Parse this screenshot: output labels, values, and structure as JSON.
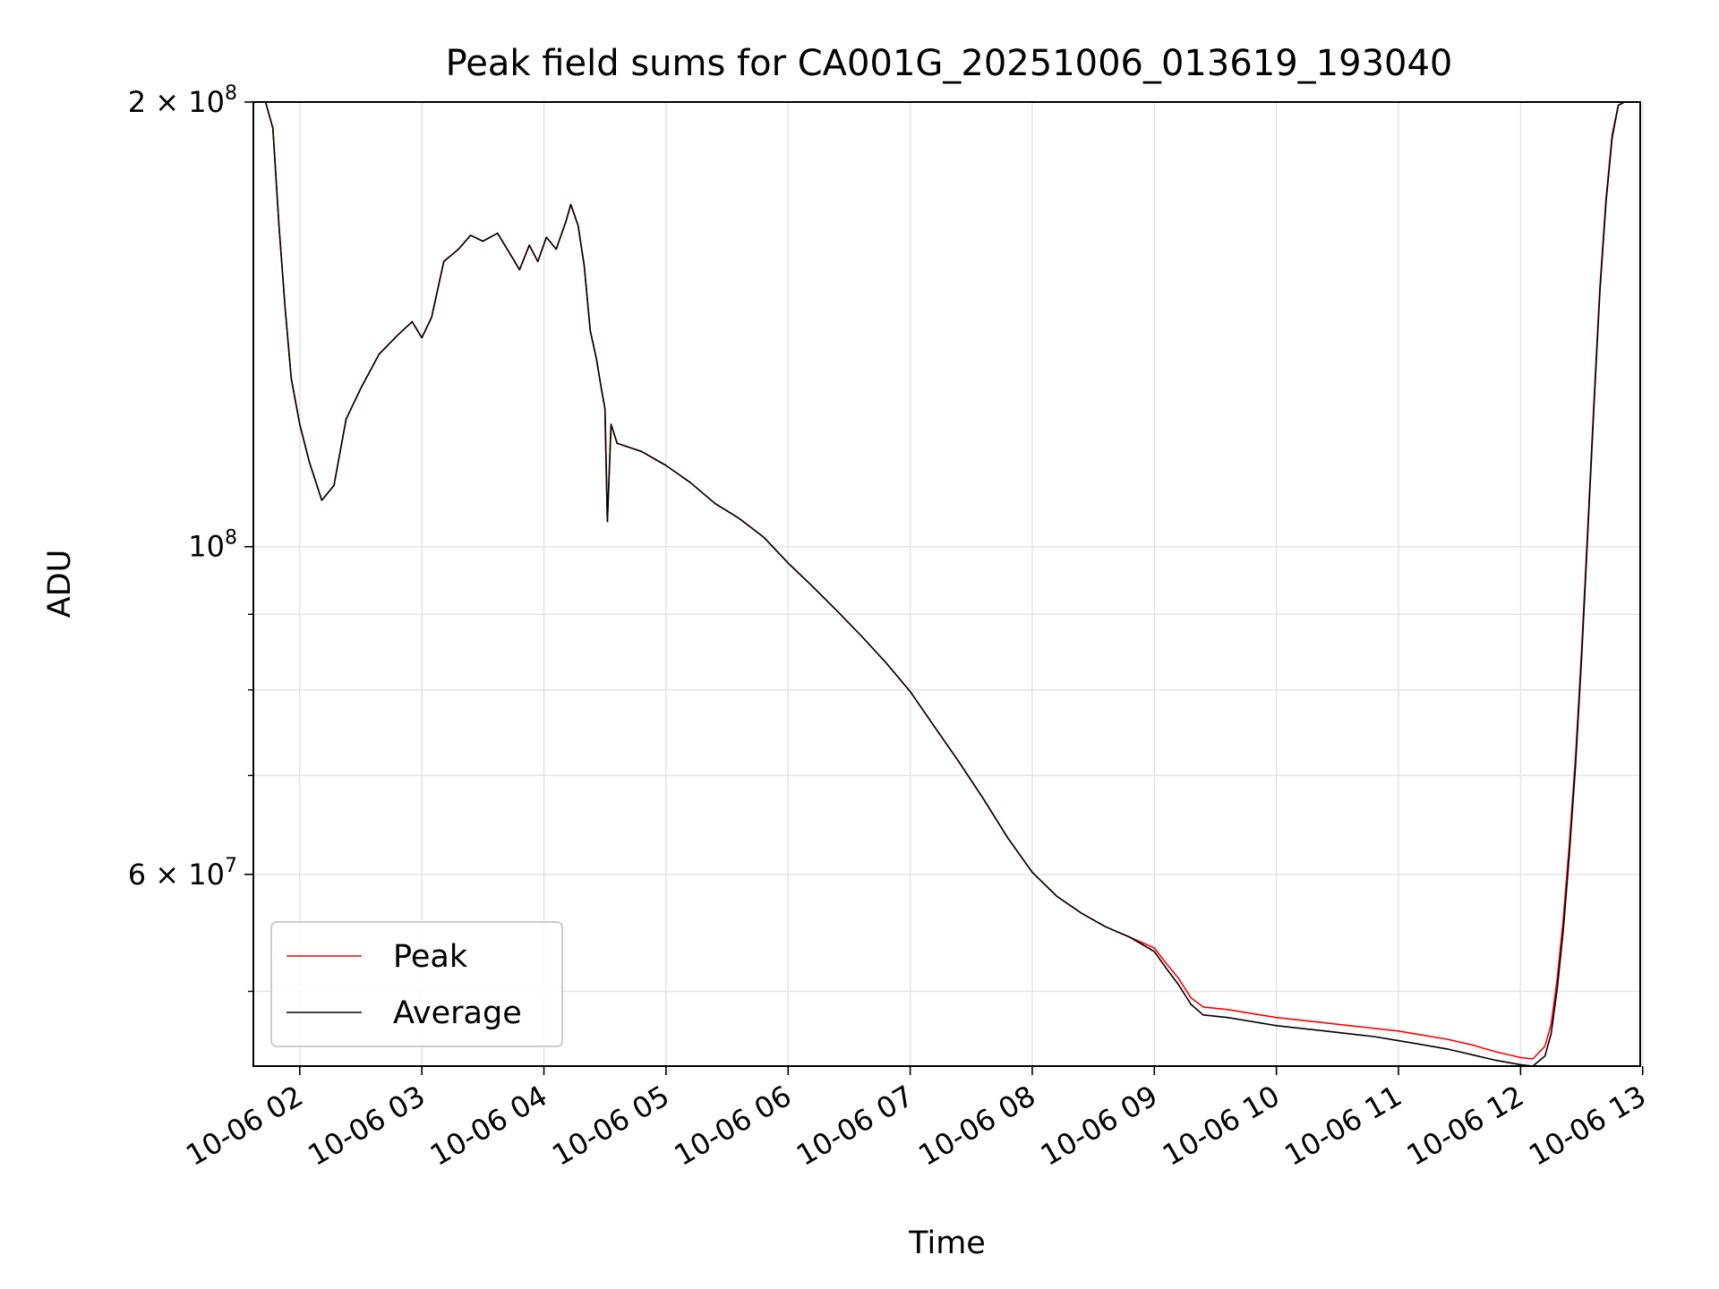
{
  "chart_data": {
    "type": "line",
    "title": "Peak field sums for CA001G_20251006_013619_193040",
    "xlabel": "Time",
    "ylabel": "ADU",
    "yscale": "log",
    "xlim": [
      1.62,
      12.98
    ],
    "ylim": [
      44500000,
      200000000
    ],
    "grid": true,
    "legend_position": "lower-left",
    "x_ticks": [
      {
        "value": 2,
        "label": "10-06 02"
      },
      {
        "value": 3,
        "label": "10-06 03"
      },
      {
        "value": 4,
        "label": "10-06 04"
      },
      {
        "value": 5,
        "label": "10-06 05"
      },
      {
        "value": 6,
        "label": "10-06 06"
      },
      {
        "value": 7,
        "label": "10-06 07"
      },
      {
        "value": 8,
        "label": "10-06 08"
      },
      {
        "value": 9,
        "label": "10-06 09"
      },
      {
        "value": 10,
        "label": "10-06 10"
      },
      {
        "value": 11,
        "label": "10-06 11"
      },
      {
        "value": 12,
        "label": "10-06 12"
      },
      {
        "value": 13,
        "label": "10-06 13"
      }
    ],
    "y_ticks_major": [
      {
        "value": 200000000,
        "mant": "2",
        "exp": "8"
      },
      {
        "value": 100000000,
        "mant": "",
        "exp": "8"
      },
      {
        "value": 60000000,
        "mant": "6",
        "exp": "7"
      }
    ],
    "y_ticks_minor": [
      50000000,
      70000000,
      80000000,
      90000000
    ],
    "series": [
      {
        "name": "Peak",
        "color": "#ff0000",
        "points": [
          [
            1.62,
            200000000
          ],
          [
            1.72,
            200000000
          ],
          [
            1.78,
            192000000
          ],
          [
            1.83,
            165000000
          ],
          [
            1.88,
            145000000
          ],
          [
            1.93,
            130000000
          ],
          [
            2.0,
            121000000
          ],
          [
            2.08,
            114000000
          ],
          [
            2.18,
            107500000
          ],
          [
            2.28,
            110000000
          ],
          [
            2.38,
            122000000
          ],
          [
            2.5,
            128000000
          ],
          [
            2.65,
            135000000
          ],
          [
            2.8,
            139000000
          ],
          [
            2.92,
            142000000
          ],
          [
            3.0,
            138500000
          ],
          [
            3.08,
            143000000
          ],
          [
            3.18,
            156000000
          ],
          [
            3.3,
            159000000
          ],
          [
            3.4,
            162500000
          ],
          [
            3.5,
            161000000
          ],
          [
            3.62,
            163000000
          ],
          [
            3.72,
            158000000
          ],
          [
            3.8,
            154000000
          ],
          [
            3.88,
            160000000
          ],
          [
            3.95,
            156000000
          ],
          [
            4.02,
            162000000
          ],
          [
            4.1,
            159000000
          ],
          [
            4.18,
            166000000
          ],
          [
            4.22,
            170500000
          ],
          [
            4.28,
            165000000
          ],
          [
            4.33,
            155000000
          ],
          [
            4.38,
            140000000
          ],
          [
            4.43,
            134000000
          ],
          [
            4.47,
            128000000
          ],
          [
            4.5,
            124000000
          ],
          [
            4.52,
            104000000
          ],
          [
            4.55,
            121000000
          ],
          [
            4.6,
            117500000
          ],
          [
            4.8,
            116000000
          ],
          [
            5.0,
            113500000
          ],
          [
            5.2,
            110500000
          ],
          [
            5.4,
            107000000
          ],
          [
            5.6,
            104500000
          ],
          [
            5.8,
            101500000
          ],
          [
            6.0,
            97500000
          ],
          [
            6.2,
            94000000
          ],
          [
            6.4,
            90500000
          ],
          [
            6.6,
            87000000
          ],
          [
            6.8,
            83500000
          ],
          [
            7.0,
            79800000
          ],
          [
            7.2,
            75500000
          ],
          [
            7.4,
            71500000
          ],
          [
            7.6,
            67500000
          ],
          [
            7.8,
            63500000
          ],
          [
            8.0,
            60200000
          ],
          [
            8.2,
            58000000
          ],
          [
            8.4,
            56500000
          ],
          [
            8.6,
            55300000
          ],
          [
            8.8,
            54400000
          ],
          [
            9.0,
            53500000
          ],
          [
            9.1,
            52200000
          ],
          [
            9.2,
            51000000
          ],
          [
            9.3,
            49500000
          ],
          [
            9.4,
            48800000
          ],
          [
            9.6,
            48600000
          ],
          [
            9.8,
            48300000
          ],
          [
            10.0,
            48000000
          ],
          [
            10.2,
            47800000
          ],
          [
            10.4,
            47600000
          ],
          [
            10.6,
            47400000
          ],
          [
            10.8,
            47200000
          ],
          [
            11.0,
            47000000
          ],
          [
            11.2,
            46700000
          ],
          [
            11.4,
            46400000
          ],
          [
            11.6,
            46000000
          ],
          [
            11.8,
            45500000
          ],
          [
            12.0,
            45100000
          ],
          [
            12.1,
            45000000
          ],
          [
            12.2,
            45900000
          ],
          [
            12.25,
            47500000
          ],
          [
            12.3,
            51000000
          ],
          [
            12.35,
            56000000
          ],
          [
            12.4,
            63000000
          ],
          [
            12.45,
            72000000
          ],
          [
            12.5,
            85000000
          ],
          [
            12.55,
            103000000
          ],
          [
            12.6,
            125000000
          ],
          [
            12.65,
            150000000
          ],
          [
            12.7,
            172000000
          ],
          [
            12.75,
            190000000
          ],
          [
            12.8,
            199000000
          ],
          [
            12.85,
            200000000
          ],
          [
            12.98,
            200000000
          ]
        ]
      },
      {
        "name": "Average",
        "color": "#000000",
        "points": [
          [
            1.62,
            200000000
          ],
          [
            1.72,
            200000000
          ],
          [
            1.78,
            192000000
          ],
          [
            1.83,
            165000000
          ],
          [
            1.88,
            145000000
          ],
          [
            1.93,
            130000000
          ],
          [
            2.0,
            121000000
          ],
          [
            2.08,
            114000000
          ],
          [
            2.18,
            107500000
          ],
          [
            2.28,
            110000000
          ],
          [
            2.38,
            122000000
          ],
          [
            2.5,
            128000000
          ],
          [
            2.65,
            135000000
          ],
          [
            2.8,
            139000000
          ],
          [
            2.92,
            142000000
          ],
          [
            3.0,
            138500000
          ],
          [
            3.08,
            143000000
          ],
          [
            3.18,
            156000000
          ],
          [
            3.3,
            159000000
          ],
          [
            3.4,
            162500000
          ],
          [
            3.5,
            161000000
          ],
          [
            3.62,
            163000000
          ],
          [
            3.72,
            158000000
          ],
          [
            3.8,
            154000000
          ],
          [
            3.88,
            160000000
          ],
          [
            3.95,
            156000000
          ],
          [
            4.02,
            162000000
          ],
          [
            4.1,
            159000000
          ],
          [
            4.18,
            166000000
          ],
          [
            4.22,
            170500000
          ],
          [
            4.28,
            165000000
          ],
          [
            4.33,
            155000000
          ],
          [
            4.38,
            140000000
          ],
          [
            4.43,
            134000000
          ],
          [
            4.47,
            128000000
          ],
          [
            4.5,
            124000000
          ],
          [
            4.52,
            104000000
          ],
          [
            4.55,
            121000000
          ],
          [
            4.6,
            117500000
          ],
          [
            4.8,
            116000000
          ],
          [
            5.0,
            113500000
          ],
          [
            5.2,
            110500000
          ],
          [
            5.4,
            107000000
          ],
          [
            5.6,
            104500000
          ],
          [
            5.8,
            101500000
          ],
          [
            6.0,
            97500000
          ],
          [
            6.2,
            94000000
          ],
          [
            6.4,
            90500000
          ],
          [
            6.6,
            87000000
          ],
          [
            6.8,
            83500000
          ],
          [
            7.0,
            79800000
          ],
          [
            7.2,
            75500000
          ],
          [
            7.4,
            71500000
          ],
          [
            7.6,
            67500000
          ],
          [
            7.8,
            63500000
          ],
          [
            8.0,
            60200000
          ],
          [
            8.2,
            58000000
          ],
          [
            8.4,
            56500000
          ],
          [
            8.6,
            55300000
          ],
          [
            8.8,
            54400000
          ],
          [
            9.0,
            53200000
          ],
          [
            9.1,
            51800000
          ],
          [
            9.2,
            50500000
          ],
          [
            9.3,
            49000000
          ],
          [
            9.4,
            48200000
          ],
          [
            9.6,
            48000000
          ],
          [
            9.8,
            47700000
          ],
          [
            10.0,
            47400000
          ],
          [
            10.2,
            47200000
          ],
          [
            10.4,
            47000000
          ],
          [
            10.6,
            46800000
          ],
          [
            10.8,
            46600000
          ],
          [
            11.0,
            46300000
          ],
          [
            11.2,
            46000000
          ],
          [
            11.4,
            45700000
          ],
          [
            11.6,
            45300000
          ],
          [
            11.8,
            44900000
          ],
          [
            12.0,
            44600000
          ],
          [
            12.1,
            44500000
          ],
          [
            12.2,
            45200000
          ],
          [
            12.25,
            46800000
          ],
          [
            12.3,
            50200000
          ],
          [
            12.35,
            55000000
          ],
          [
            12.4,
            62000000
          ],
          [
            12.45,
            71000000
          ],
          [
            12.5,
            84000000
          ],
          [
            12.55,
            102000000
          ],
          [
            12.6,
            124000000
          ],
          [
            12.65,
            149000000
          ],
          [
            12.7,
            171000000
          ],
          [
            12.75,
            189000000
          ],
          [
            12.8,
            199000000
          ],
          [
            12.85,
            200000000
          ],
          [
            12.98,
            200000000
          ]
        ]
      }
    ]
  }
}
